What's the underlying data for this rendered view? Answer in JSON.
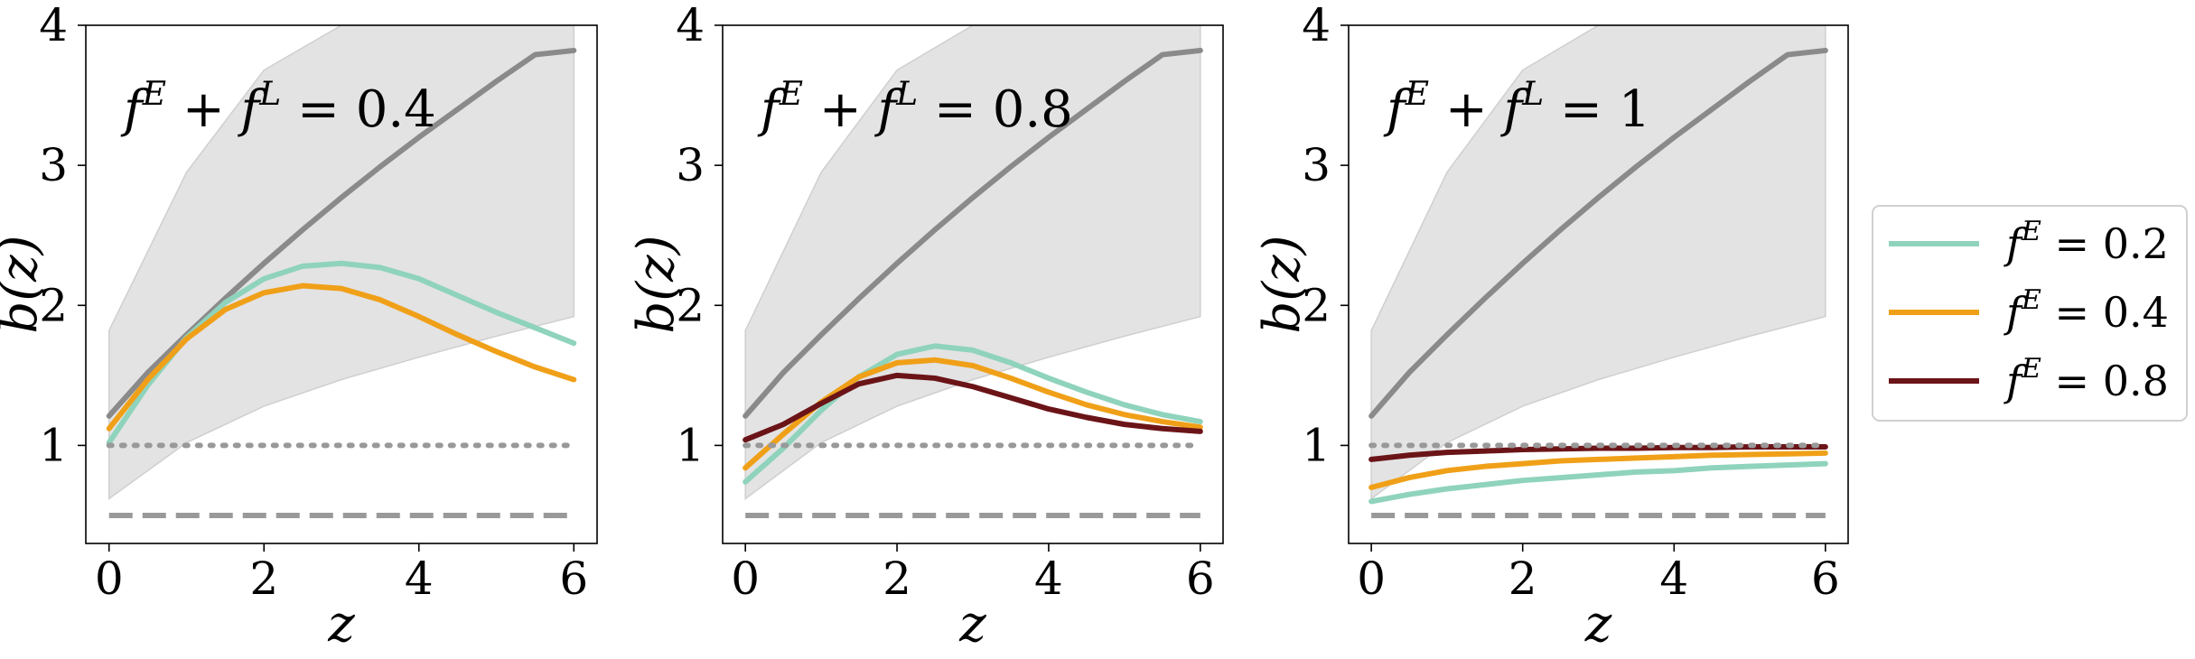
{
  "chart_data": [
    {
      "type": "line",
      "title": "f^E + f^L = 0.4",
      "title_parts": {
        "a": "f",
        "a_sup": "E",
        "plus": "+",
        "b": "f",
        "b_sup": "L",
        "eq": "= 0.4"
      },
      "xlabel": "z",
      "ylabel": "b(z)",
      "xlim": [
        -0.3,
        6.3
      ],
      "ylim": [
        0.3,
        4.0
      ],
      "xticks": [
        "0",
        "2",
        "4",
        "6"
      ],
      "yticks": [
        "1",
        "2",
        "3",
        "4"
      ],
      "grid": false,
      "band": {
        "x": [
          0,
          1,
          2,
          3,
          4,
          5,
          6
        ],
        "lower": [
          0.62,
          1.02,
          1.28,
          1.47,
          1.63,
          1.78,
          1.92
        ],
        "upper": [
          1.82,
          2.95,
          3.68,
          4.0,
          4.0,
          4.0,
          4.0
        ],
        "color": "#e3e3e3"
      },
      "series": [
        {
          "x": [
            0,
            0.5,
            1,
            1.5,
            2,
            2.5,
            3,
            3.5,
            4,
            4.5,
            5,
            5.5,
            6
          ],
          "y": [
            1.21,
            1.52,
            1.79,
            2.05,
            2.3,
            2.54,
            2.77,
            2.99,
            3.2,
            3.4,
            3.6,
            3.79,
            3.82
          ],
          "color": "#8a8a8a",
          "style": "solid"
        },
        {
          "x": [
            0,
            0.5,
            1,
            1.5,
            2,
            2.5,
            3,
            3.5,
            4,
            4.5,
            5,
            5.5,
            6
          ],
          "y": [
            1.02,
            1.43,
            1.77,
            2.02,
            2.19,
            2.28,
            2.3,
            2.27,
            2.19,
            2.07,
            1.95,
            1.84,
            1.73
          ],
          "color": "#8fd3bc",
          "style": "solid"
        },
        {
          "x": [
            0,
            0.5,
            1,
            1.5,
            2,
            2.5,
            3,
            3.5,
            4,
            4.5,
            5,
            5.5,
            6
          ],
          "y": [
            1.12,
            1.47,
            1.76,
            1.97,
            2.09,
            2.14,
            2.12,
            2.04,
            1.92,
            1.79,
            1.67,
            1.56,
            1.47
          ],
          "color": "#f0a018",
          "style": "solid"
        },
        {
          "x": [
            0,
            6
          ],
          "y": [
            1.0,
            1.0
          ],
          "color": "#999999",
          "style": "dotted"
        },
        {
          "x": [
            0,
            6
          ],
          "y": [
            0.5,
            0.5
          ],
          "color": "#999999",
          "style": "dashed"
        }
      ]
    },
    {
      "type": "line",
      "title": "f^E + f^L = 0.8",
      "title_parts": {
        "a": "f",
        "a_sup": "E",
        "plus": "+",
        "b": "f",
        "b_sup": "L",
        "eq": "= 0.8"
      },
      "xlabel": "z",
      "ylabel": "b(z)",
      "xlim": [
        -0.3,
        6.3
      ],
      "ylim": [
        0.3,
        4.0
      ],
      "xticks": [
        "0",
        "2",
        "4",
        "6"
      ],
      "yticks": [
        "1",
        "2",
        "3",
        "4"
      ],
      "grid": false,
      "band": {
        "x": [
          0,
          1,
          2,
          3,
          4,
          5,
          6
        ],
        "lower": [
          0.62,
          1.02,
          1.28,
          1.47,
          1.63,
          1.78,
          1.92
        ],
        "upper": [
          1.82,
          2.95,
          3.68,
          4.0,
          4.0,
          4.0,
          4.0
        ],
        "color": "#e3e3e3"
      },
      "series": [
        {
          "x": [
            0,
            0.5,
            1,
            1.5,
            2,
            2.5,
            3,
            3.5,
            4,
            4.5,
            5,
            5.5,
            6
          ],
          "y": [
            1.21,
            1.52,
            1.79,
            2.05,
            2.3,
            2.54,
            2.77,
            2.99,
            3.2,
            3.4,
            3.6,
            3.79,
            3.82
          ],
          "color": "#8a8a8a",
          "style": "solid"
        },
        {
          "x": [
            0,
            0.5,
            1,
            1.5,
            2,
            2.5,
            3,
            3.5,
            4,
            4.5,
            5,
            5.5,
            6
          ],
          "y": [
            0.74,
            0.98,
            1.25,
            1.49,
            1.65,
            1.71,
            1.68,
            1.59,
            1.48,
            1.38,
            1.29,
            1.22,
            1.17
          ],
          "color": "#8fd3bc",
          "style": "solid"
        },
        {
          "x": [
            0,
            0.5,
            1,
            1.5,
            2,
            2.5,
            3,
            3.5,
            4,
            4.5,
            5,
            5.5,
            6
          ],
          "y": [
            0.84,
            1.08,
            1.31,
            1.49,
            1.59,
            1.61,
            1.57,
            1.48,
            1.38,
            1.29,
            1.22,
            1.17,
            1.13
          ],
          "color": "#f0a018",
          "style": "solid"
        },
        {
          "x": [
            0,
            0.5,
            1,
            1.5,
            2,
            2.5,
            3,
            3.5,
            4,
            4.5,
            5,
            5.5,
            6
          ],
          "y": [
            1.04,
            1.15,
            1.3,
            1.44,
            1.5,
            1.48,
            1.42,
            1.34,
            1.26,
            1.2,
            1.15,
            1.12,
            1.1
          ],
          "color": "#6b1418",
          "style": "solid"
        },
        {
          "x": [
            0,
            6
          ],
          "y": [
            1.0,
            1.0
          ],
          "color": "#999999",
          "style": "dotted"
        },
        {
          "x": [
            0,
            6
          ],
          "y": [
            0.5,
            0.5
          ],
          "color": "#999999",
          "style": "dashed"
        }
      ]
    },
    {
      "type": "line",
      "title": "f^E + f^L = 1",
      "title_parts": {
        "a": "f",
        "a_sup": "E",
        "plus": "+",
        "b": "f",
        "b_sup": "L",
        "eq": "= 1"
      },
      "xlabel": "z",
      "ylabel": "b(z)",
      "xlim": [
        -0.3,
        6.3
      ],
      "ylim": [
        0.3,
        4.0
      ],
      "xticks": [
        "0",
        "2",
        "4",
        "6"
      ],
      "yticks": [
        "1",
        "2",
        "3",
        "4"
      ],
      "grid": false,
      "band": {
        "x": [
          0,
          1,
          2,
          3,
          4,
          5,
          6
        ],
        "lower": [
          0.62,
          1.02,
          1.28,
          1.47,
          1.63,
          1.78,
          1.92
        ],
        "upper": [
          1.82,
          2.95,
          3.68,
          4.0,
          4.0,
          4.0,
          4.0
        ],
        "color": "#e3e3e3"
      },
      "series": [
        {
          "x": [
            0,
            0.5,
            1,
            1.5,
            2,
            2.5,
            3,
            3.5,
            4,
            4.5,
            5,
            5.5,
            6
          ],
          "y": [
            1.21,
            1.52,
            1.79,
            2.05,
            2.3,
            2.54,
            2.77,
            2.99,
            3.2,
            3.4,
            3.6,
            3.79,
            3.82
          ],
          "color": "#8a8a8a",
          "style": "solid"
        },
        {
          "x": [
            0,
            0.5,
            1,
            1.5,
            2,
            2.5,
            3,
            3.5,
            4,
            4.5,
            5,
            5.5,
            6
          ],
          "y": [
            0.6,
            0.65,
            0.69,
            0.72,
            0.75,
            0.77,
            0.79,
            0.81,
            0.82,
            0.84,
            0.85,
            0.86,
            0.87
          ],
          "color": "#8fd3bc",
          "style": "solid"
        },
        {
          "x": [
            0,
            0.5,
            1,
            1.5,
            2,
            2.5,
            3,
            3.5,
            4,
            4.5,
            5,
            5.5,
            6
          ],
          "y": [
            0.7,
            0.77,
            0.82,
            0.85,
            0.87,
            0.89,
            0.9,
            0.91,
            0.92,
            0.93,
            0.935,
            0.94,
            0.945
          ],
          "color": "#f0a018",
          "style": "solid"
        },
        {
          "x": [
            0,
            0.5,
            1,
            1.5,
            2,
            2.5,
            3,
            3.5,
            4,
            4.5,
            5,
            5.5,
            6
          ],
          "y": [
            0.9,
            0.93,
            0.95,
            0.96,
            0.97,
            0.975,
            0.98,
            0.98,
            0.985,
            0.985,
            0.99,
            0.99,
            0.99
          ],
          "color": "#6b1418",
          "style": "solid"
        },
        {
          "x": [
            0,
            6
          ],
          "y": [
            1.0,
            1.0
          ],
          "color": "#999999",
          "style": "dotted"
        },
        {
          "x": [
            0,
            6
          ],
          "y": [
            0.5,
            0.5
          ],
          "color": "#999999",
          "style": "dashed"
        }
      ]
    }
  ],
  "legend": {
    "placement": "right",
    "entries": [
      {
        "label": "f^E = 0.2",
        "text_f": "f",
        "text_sup": "E",
        "text_eq": "= 0.2",
        "color": "#8fd3bc"
      },
      {
        "label": "f^E = 0.4",
        "text_f": "f",
        "text_sup": "E",
        "text_eq": "= 0.4",
        "color": "#f0a018"
      },
      {
        "label": "f^E = 0.8",
        "text_f": "f",
        "text_sup": "E",
        "text_eq": "= 0.8",
        "color": "#6b1418"
      }
    ]
  }
}
